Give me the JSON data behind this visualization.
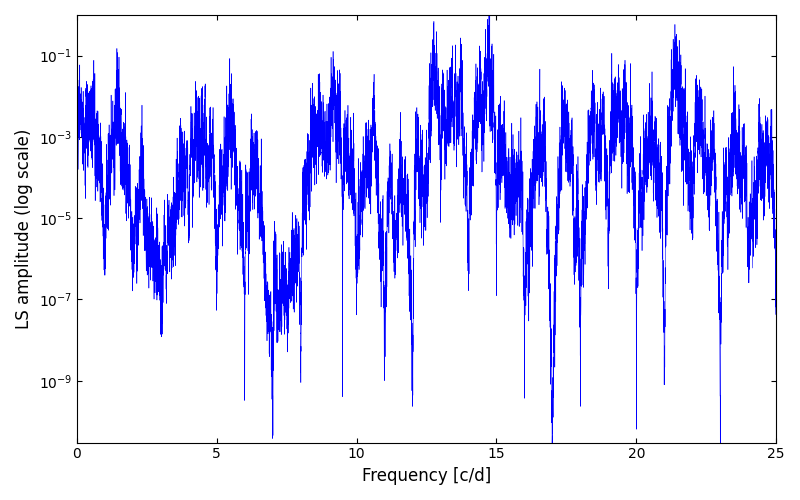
{
  "title": "",
  "xlabel": "Frequency [c/d]",
  "ylabel": "LS amplitude (log scale)",
  "line_color": "#0000ff",
  "xlim": [
    0,
    25
  ],
  "ylim": [
    3e-11,
    1.0
  ],
  "yticks": [
    1e-09,
    1e-07,
    1e-05,
    0.001,
    0.1
  ],
  "xticks": [
    0,
    5,
    10,
    15,
    20,
    25
  ],
  "figsize": [
    8.0,
    5.0
  ],
  "dpi": 100,
  "seed": 12345,
  "n_points": 8000,
  "freq_max": 25.0
}
